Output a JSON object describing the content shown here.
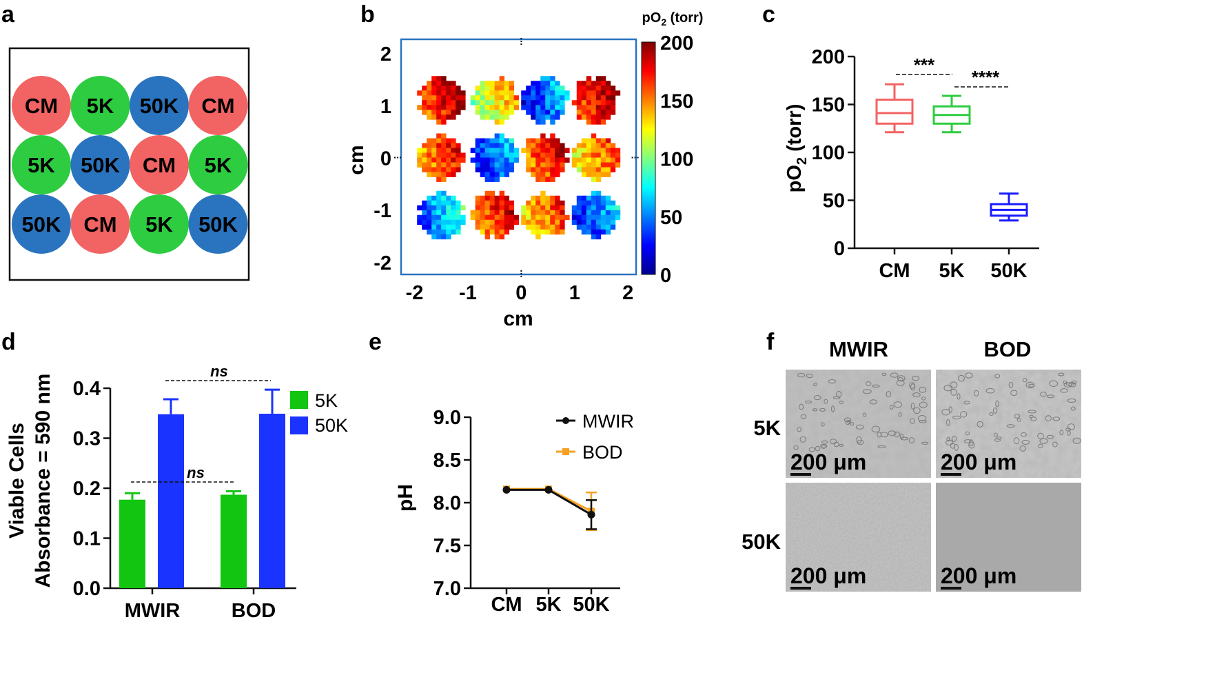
{
  "panel_labels": [
    "a",
    "b",
    "c",
    "d",
    "e",
    "f"
  ],
  "chart_data": [
    {
      "panel": "a",
      "type": "diagram",
      "layout": [
        [
          "CM",
          "5K",
          "50K",
          "CM"
        ],
        [
          "5K",
          "50K",
          "CM",
          "5K"
        ],
        [
          "50K",
          "CM",
          "5K",
          "50K"
        ]
      ],
      "colors": {
        "CM": "#f26363",
        "5K": "#2ecc40",
        "50K": "#2a74bf"
      }
    },
    {
      "panel": "b",
      "type": "heatmap",
      "title": "pO2 (torr)",
      "xlabel": "cm",
      "ylabel": "cm",
      "xlim": [
        -2.2,
        2.1
      ],
      "ylim": [
        -2.2,
        2.2
      ],
      "xticks": [
        "-2",
        "-1",
        "0",
        "1",
        "2"
      ],
      "yticks": [
        "2",
        "1",
        "0",
        "-1",
        "-2"
      ],
      "colorbar_ticks": [
        "200",
        "150",
        "100",
        "50",
        "0"
      ],
      "colorbar_range": [
        0,
        200
      ],
      "spots": [
        {
          "x": -1.5,
          "y": 1.1,
          "mean": 175
        },
        {
          "x": -0.5,
          "y": 1.1,
          "mean": 125
        },
        {
          "x": 0.45,
          "y": 1.1,
          "mean": 45
        },
        {
          "x": 1.4,
          "y": 1.1,
          "mean": 180
        },
        {
          "x": -1.5,
          "y": 0.0,
          "mean": 160
        },
        {
          "x": -0.5,
          "y": 0.0,
          "mean": 45
        },
        {
          "x": 0.45,
          "y": 0.0,
          "mean": 165
        },
        {
          "x": 1.4,
          "y": 0.0,
          "mean": 145
        },
        {
          "x": -1.5,
          "y": -1.1,
          "mean": 60
        },
        {
          "x": -0.5,
          "y": -1.1,
          "mean": 165
        },
        {
          "x": 0.45,
          "y": -1.1,
          "mean": 150
        },
        {
          "x": 1.4,
          "y": -1.1,
          "mean": 45
        }
      ]
    },
    {
      "panel": "c",
      "type": "box",
      "ylabel": "pO2 (torr)",
      "ylim": [
        0,
        200
      ],
      "yticks": [
        "0",
        "50",
        "100",
        "150",
        "200"
      ],
      "categories": [
        "CM",
        "5K",
        "50K"
      ],
      "colors": [
        "#f26363",
        "#2ecc40",
        "#1a1aff"
      ],
      "boxes": [
        {
          "min": 121,
          "q1": 130,
          "median": 141,
          "q3": 155,
          "max": 171
        },
        {
          "min": 121,
          "q1": 130,
          "median": 139,
          "q3": 148,
          "max": 159
        },
        {
          "min": 29,
          "q1": 34,
          "median": 40,
          "q3": 46,
          "max": 57
        }
      ],
      "annotations": [
        "***",
        "****"
      ]
    },
    {
      "panel": "d",
      "type": "bar",
      "ylabel_line1": "Viable Cells",
      "ylabel_line2": "Absorbance = 590 nm",
      "ylim": [
        0,
        0.4
      ],
      "yticks": [
        "0.0",
        "0.1",
        "0.2",
        "0.3",
        "0.4"
      ],
      "categories": [
        "MWIR",
        "BOD"
      ],
      "series": [
        {
          "name": "5K",
          "color": "#11c511",
          "values": [
            0.177,
            0.187
          ],
          "errors": [
            0.013,
            0.007
          ]
        },
        {
          "name": "50K",
          "color": "#1a33ff",
          "values": [
            0.348,
            0.349
          ],
          "errors": [
            0.03,
            0.048
          ]
        }
      ],
      "annotations": [
        "ns",
        "ns"
      ]
    },
    {
      "panel": "e",
      "type": "line",
      "ylabel": "pH",
      "ylim": [
        7.0,
        9.0
      ],
      "yticks": [
        "7.0",
        "7.5",
        "8.0",
        "8.5",
        "9.0"
      ],
      "categories": [
        "CM",
        "5K",
        "50K"
      ],
      "series": [
        {
          "name": "MWIR",
          "color": "#111111",
          "values": [
            8.15,
            8.15,
            7.86
          ],
          "errors": [
            0.02,
            0.02,
            0.17
          ]
        },
        {
          "name": "BOD",
          "color": "#f5a123",
          "values": [
            8.16,
            8.16,
            7.9
          ],
          "errors": [
            0.02,
            0.02,
            0.22
          ]
        }
      ]
    },
    {
      "panel": "f",
      "type": "image-grid",
      "columns": [
        "MWIR",
        "BOD"
      ],
      "rows": [
        "5K",
        "50K"
      ],
      "scale_bar": "200 μm"
    }
  ]
}
